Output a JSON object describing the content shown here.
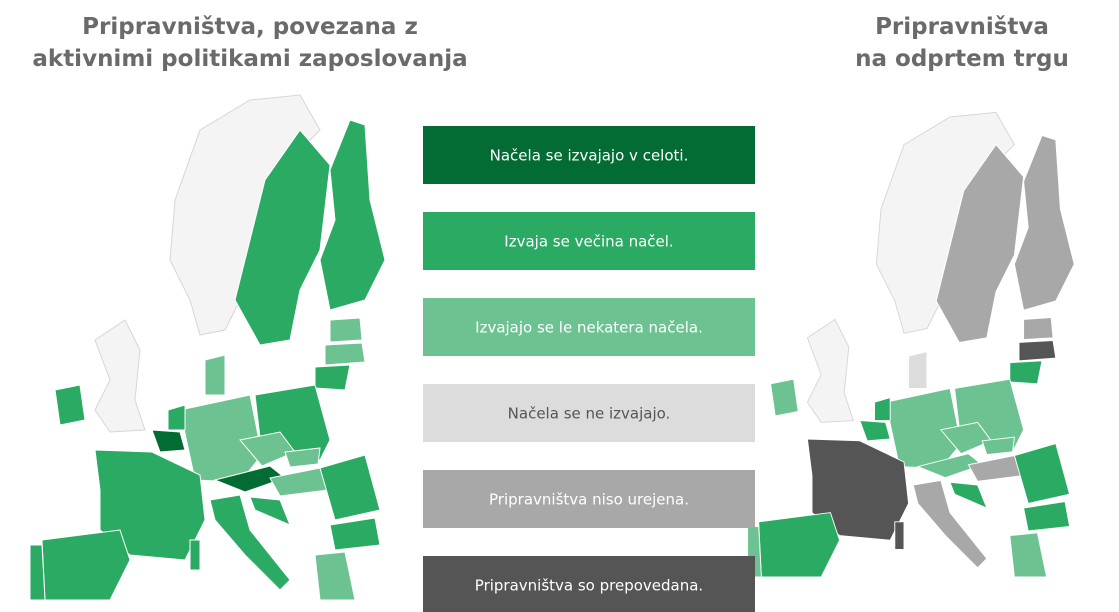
{
  "left_map": {
    "title": [
      "Pripravništva, povezana z",
      "aktivnimi politikami zaposlovanja"
    ]
  },
  "right_map": {
    "title": [
      "Pripravništva",
      "na odprtem trgu"
    ]
  },
  "legend": [
    {
      "label": "Načela se izvajajo v celoti.",
      "color": "#036b34"
    },
    {
      "label": "Izvaja se večina načel.",
      "color": "#2baa63"
    },
    {
      "label": "Izvajajo se le nekatera načela.",
      "color": "#6cc391"
    },
    {
      "label": "Načela se ne izvajajo.",
      "color": "#dcdcdc"
    },
    {
      "label": "Pripravništva niso urejena.",
      "color": "#a8a8a8"
    },
    {
      "label": "Pripravništva so prepovedana.",
      "color": "#555555"
    }
  ]
}
